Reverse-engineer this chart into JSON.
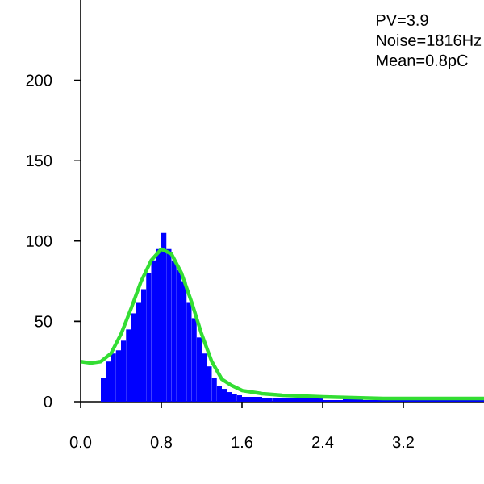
{
  "chart_data": {
    "type": "histogram",
    "series": [
      {
        "color": "#0000ff",
        "bins": [
          0.2,
          0.25,
          0.3,
          0.35,
          0.4,
          0.45,
          0.5,
          0.55,
          0.6,
          0.65,
          0.7,
          0.75,
          0.8,
          0.85,
          0.9,
          0.95,
          1.0,
          1.05,
          1.1,
          1.15,
          1.2,
          1.25,
          1.3,
          1.35,
          1.4,
          1.45,
          1.5,
          1.55,
          1.6,
          1.7,
          1.8,
          1.9,
          2.0,
          2.2,
          2.4,
          2.6,
          2.8,
          3.0,
          3.2,
          3.4,
          3.6,
          3.8,
          4.0
        ],
        "values": [
          15,
          25,
          30,
          32,
          38,
          45,
          55,
          62,
          70,
          80,
          88,
          95,
          105,
          95,
          88,
          82,
          75,
          62,
          52,
          40,
          30,
          22,
          15,
          10,
          8,
          6,
          5,
          4,
          3,
          3,
          2,
          2,
          2,
          2,
          1,
          2,
          1,
          1,
          1,
          1,
          1,
          1
        ]
      },
      {
        "type": "line",
        "color": "#33dd33",
        "x": [
          0,
          0.1,
          0.2,
          0.3,
          0.4,
          0.5,
          0.6,
          0.7,
          0.8,
          0.9,
          1.0,
          1.1,
          1.2,
          1.3,
          1.4,
          1.5,
          1.6,
          1.8,
          2.0,
          2.4,
          3.0,
          4.0
        ],
        "values": [
          25,
          24,
          25,
          30,
          42,
          58,
          75,
          88,
          95,
          92,
          80,
          62,
          42,
          25,
          14,
          10,
          7,
          5,
          4,
          3,
          2,
          2
        ]
      }
    ],
    "xlim": [
      0,
      4.0
    ],
    "ylim": [
      0,
      250
    ],
    "xticks": [
      {
        "value": 0,
        "label": "0.0"
      },
      0.8,
      1.6,
      2.4,
      3.2
    ],
    "yticks": [
      0,
      50,
      100,
      150,
      200
    ],
    "annotations": [
      "PV=3.9",
      "Noise=1816Hz",
      "Mean=0.8pC"
    ],
    "grid": false
  }
}
